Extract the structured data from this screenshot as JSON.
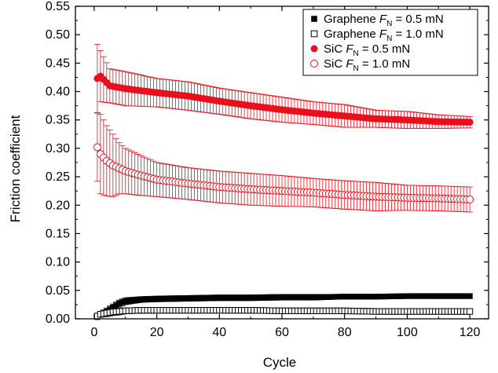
{
  "chart_data": {
    "type": "scatter",
    "xlabel": "Cycle",
    "ylabel": "Friction coefficient",
    "xlim": [
      -6,
      126
    ],
    "ylim": [
      0,
      0.55
    ],
    "xticks": [
      "0",
      "20",
      "40",
      "60",
      "80",
      "100",
      "120"
    ],
    "yticks": [
      "0.00",
      "0.05",
      "0.10",
      "0.15",
      "0.20",
      "0.25",
      "0.30",
      "0.35",
      "0.40",
      "0.45",
      "0.50",
      "0.55"
    ],
    "grid": false,
    "legend_position": "top-right",
    "series": [
      {
        "name_parts": [
          "Graphene ",
          "F",
          "N",
          " = 0.5 mN"
        ],
        "marker": "square-filled",
        "color": "#000000",
        "x": [
          1,
          2,
          4,
          6,
          8,
          10,
          15,
          20,
          30,
          40,
          50,
          60,
          70,
          80,
          90,
          100,
          110,
          120
        ],
        "y": [
          0.003,
          0.008,
          0.013,
          0.02,
          0.027,
          0.031,
          0.034,
          0.035,
          0.036,
          0.037,
          0.037,
          0.038,
          0.038,
          0.039,
          0.039,
          0.04,
          0.04,
          0.04
        ],
        "err": [
          0.003,
          0.004,
          0.006,
          0.006,
          0.006,
          0.006,
          0.005,
          0.005,
          0.005,
          0.005,
          0.005,
          0.005,
          0.005,
          0.004,
          0.004,
          0.004,
          0.004,
          0.004
        ]
      },
      {
        "name_parts": [
          "Graphene ",
          "F",
          "N",
          " = 1.0 mN"
        ],
        "marker": "square-open",
        "color": "#000000",
        "x": [
          1,
          2,
          4,
          6,
          8,
          10,
          15,
          20,
          30,
          40,
          50,
          60,
          70,
          80,
          90,
          100,
          110,
          120
        ],
        "y": [
          0.005,
          0.008,
          0.01,
          0.012,
          0.013,
          0.014,
          0.015,
          0.015,
          0.015,
          0.015,
          0.015,
          0.014,
          0.014,
          0.014,
          0.013,
          0.013,
          0.013,
          0.013
        ],
        "err": [
          0.004,
          0.005,
          0.006,
          0.006,
          0.006,
          0.005,
          0.005,
          0.005,
          0.004,
          0.004,
          0.004,
          0.004,
          0.003,
          0.003,
          0.003,
          0.003,
          0.003,
          0.003
        ]
      },
      {
        "name_parts": [
          "SiC ",
          "F",
          "N",
          " = 0.5 mN"
        ],
        "marker": "circle-filled",
        "color": "#e8101c",
        "x": [
          1,
          2,
          5,
          10,
          20,
          30,
          40,
          50,
          60,
          70,
          80,
          90,
          100,
          110,
          120
        ],
        "y": [
          0.423,
          0.427,
          0.41,
          0.405,
          0.398,
          0.392,
          0.383,
          0.375,
          0.368,
          0.362,
          0.357,
          0.352,
          0.35,
          0.347,
          0.346
        ],
        "err": [
          0.06,
          0.045,
          0.03,
          0.03,
          0.025,
          0.025,
          0.023,
          0.023,
          0.022,
          0.02,
          0.02,
          0.015,
          0.015,
          0.012,
          0.01
        ]
      },
      {
        "name_parts": [
          "SiC ",
          "F",
          "N",
          " = 1.0 mN"
        ],
        "marker": "circle-open",
        "color": "#e8101c",
        "x": [
          1,
          2,
          4,
          6,
          8,
          10,
          15,
          20,
          30,
          40,
          50,
          60,
          70,
          80,
          90,
          100,
          110,
          120
        ],
        "y": [
          0.302,
          0.29,
          0.278,
          0.27,
          0.265,
          0.26,
          0.252,
          0.245,
          0.238,
          0.232,
          0.228,
          0.225,
          0.222,
          0.218,
          0.215,
          0.213,
          0.212,
          0.21
        ],
        "err": [
          0.06,
          0.07,
          0.062,
          0.055,
          0.045,
          0.04,
          0.035,
          0.03,
          0.028,
          0.028,
          0.028,
          0.027,
          0.025,
          0.025,
          0.025,
          0.022,
          0.022,
          0.022
        ]
      }
    ]
  }
}
